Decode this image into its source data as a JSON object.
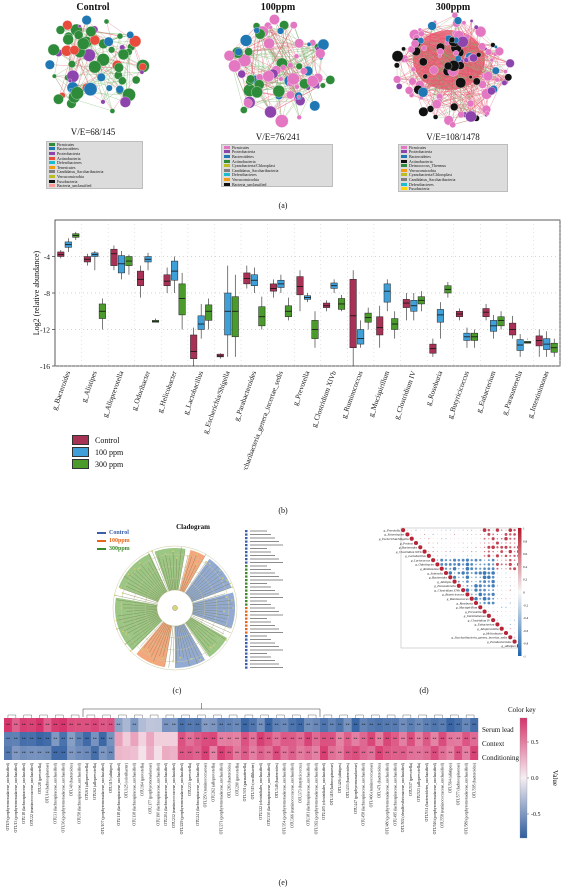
{
  "panel_a": {
    "label": "(a)",
    "networks": [
      {
        "title": "Control",
        "ve": "V/E=68/145",
        "legend": [
          {
            "name": "Firmicutes",
            "pct": "",
            "color": "#2e8b3a"
          },
          {
            "name": "Bacteroidetes",
            "pct": "",
            "color": "#1f77b4"
          },
          {
            "name": "Proteobacteria",
            "pct": "",
            "color": "#8e44ad"
          },
          {
            "name": "Actinobacteria",
            "pct": "",
            "color": "#e74c3c"
          },
          {
            "name": "Deferribacteres",
            "pct": "",
            "color": "#17becf"
          },
          {
            "name": "Tenericutes",
            "pct": "",
            "color": "#f39c12"
          },
          {
            "name": "Candidatus_Saccharibacteria",
            "pct": "",
            "color": "#7f7f7f"
          },
          {
            "name": "Verrucomicrobia",
            "pct": "",
            "color": "#bcbd22"
          },
          {
            "name": "Fusobacteria",
            "pct": "",
            "color": "#111111"
          },
          {
            "name": "Bacteria_unclassified",
            "pct": "",
            "color": "#ff9896"
          }
        ]
      },
      {
        "title": "100ppm",
        "ve": "V/E=76/241",
        "legend": [
          {
            "name": "Firmicutes",
            "pct": "",
            "color": "#e377c2"
          },
          {
            "name": "Proteobacteria",
            "pct": "",
            "color": "#8e44ad"
          },
          {
            "name": "Bacteroidetes",
            "pct": "",
            "color": "#1f77b4"
          },
          {
            "name": "Actinobacteria",
            "pct": "",
            "color": "#2e8b3a"
          },
          {
            "name": "Cyanobacteria/Chloroplast",
            "pct": "",
            "color": "#bcbd22"
          },
          {
            "name": "Candidatus_Saccharibacteria",
            "pct": "",
            "color": "#7f7f7f"
          },
          {
            "name": "Deferribacteres",
            "pct": "",
            "color": "#17becf"
          },
          {
            "name": "Verrucomicrobia",
            "pct": "",
            "color": "#f39c12"
          },
          {
            "name": "Bacteria_unclassified",
            "pct": "",
            "color": "#111111"
          }
        ]
      },
      {
        "title": "300ppm",
        "ve": "V/E=108/1478",
        "legend": [
          {
            "name": "Firmicutes",
            "pct": "",
            "color": "#e377c2"
          },
          {
            "name": "Proteobacteria",
            "pct": "",
            "color": "#8e44ad"
          },
          {
            "name": "Bacteroidetes",
            "pct": "",
            "color": "#1f77b4"
          },
          {
            "name": "Actinobacteria",
            "pct": "",
            "color": "#111111"
          },
          {
            "name": "Deinococcus_Thermus",
            "pct": "",
            "color": "#2e8b3a"
          },
          {
            "name": "Verrucomicrobia",
            "pct": "",
            "color": "#f39c12"
          },
          {
            "name": "Cyanobacteria/Chloroplast",
            "pct": "",
            "color": "#bcbd22"
          },
          {
            "name": "Candidatus_Saccharibacteria",
            "pct": "",
            "color": "#7f7f7f"
          },
          {
            "name": "Deferribacteres",
            "pct": "",
            "color": "#17becf"
          },
          {
            "name": "Fusobacteria",
            "pct": "",
            "color": "#ffd700"
          }
        ]
      }
    ]
  },
  "panel_b": {
    "label": "(b)",
    "legend": [
      {
        "name": "Control",
        "color": "#a83256"
      },
      {
        "name": "100 ppm",
        "color": "#3f9fd8"
      },
      {
        "name": "300 ppm",
        "color": "#4a9a2c"
      }
    ]
  },
  "chart_data": {
    "type": "boxplot",
    "ylabel": "Log2 (relative abundance)",
    "ylim": [
      -16,
      0
    ],
    "yticks": [
      "-4",
      "-8",
      "-12",
      "-16"
    ],
    "grid": true,
    "categories": [
      "g_Bacteroides",
      "g_Alistipes",
      "g_Alloprevotella",
      "g_Odoribacter",
      "g_Helicobacter",
      "g_Lactobacillus",
      "g_Escherichia/Shigella",
      "g_Parabacteroides",
      "g_Saccharibacteria_genera_incertae_sedis",
      "g_Prevotella",
      "g_Clostridium XlVb",
      "g_Ruminococcus",
      "g_Mucispirillum",
      "g_Clostridium IV",
      "g_Roseburia",
      "g_Butyricicoccus",
      "g_Eubacterium",
      "g_Parasutterella",
      "g_Intestinimonas"
    ],
    "series": [
      {
        "name": "Control",
        "boxes": [
          [
            -4.2,
            -4.0,
            -3.8,
            -3.5,
            -3.3
          ],
          [
            -5.0,
            -4.6,
            -4.3,
            -4.0,
            -3.7
          ],
          [
            -5.5,
            -5.0,
            -3.7,
            -3.2,
            -2.8
          ],
          [
            -8.5,
            -7.2,
            -6.5,
            -5.6,
            -5.0
          ],
          [
            -8.0,
            -7.2,
            -6.7,
            -6.0,
            -5.2
          ],
          [
            -16,
            -15.2,
            -14.4,
            -12.6,
            -11.8
          ],
          [
            -15.2,
            -15.0,
            -14.9,
            -14.7,
            -14.6
          ],
          [
            -7.5,
            -7.0,
            -6.4,
            -5.8,
            -5.0
          ],
          [
            -8.5,
            -7.8,
            -7.5,
            -7.0,
            -6.5
          ],
          [
            -10,
            -8.2,
            -7.3,
            -6.2,
            -5.5
          ],
          [
            -10,
            -9.6,
            -9.4,
            -9.1,
            -8.8
          ],
          [
            -16,
            -14.0,
            -10.5,
            -6.5,
            -5.5
          ],
          [
            -14,
            -12.6,
            -11.8,
            -10.6,
            -9.4
          ],
          [
            -11,
            -9.6,
            -9.1,
            -8.7,
            -8.0
          ],
          [
            -15,
            -14.6,
            -14.1,
            -13.6,
            -13.0
          ],
          [
            -11,
            -10.6,
            -10.3,
            -10.0,
            -9.7
          ],
          [
            -11,
            -10.6,
            -10.1,
            -9.7,
            -9.2
          ],
          [
            -13,
            -12.6,
            -12.0,
            -11.3,
            -10.5
          ],
          [
            -15,
            -13.8,
            -13.2,
            -12.7,
            -12.0
          ]
        ]
      },
      {
        "name": "100 ppm",
        "boxes": [
          [
            -3.5,
            -3.0,
            -2.7,
            -2.4,
            -2.0
          ],
          [
            -5.5,
            -4.0,
            -3.8,
            -3.6,
            -3.4
          ],
          [
            -6.5,
            -5.8,
            -4.8,
            -3.9,
            -3.4
          ],
          [
            -5.5,
            -4.6,
            -4.3,
            -4.0,
            -3.6
          ],
          [
            -8.0,
            -6.6,
            -5.6,
            -4.5,
            -4.0
          ],
          [
            -13,
            -12.0,
            -11.4,
            -10.5,
            -9.2
          ],
          [
            -15,
            -12.6,
            -10.0,
            -8.0,
            -5.0
          ],
          [
            -8.0,
            -7.2,
            -6.6,
            -6.0,
            -5.2
          ],
          [
            -8.0,
            -7.4,
            -7.0,
            -6.6,
            -6.0
          ],
          [
            -9.0,
            -8.7,
            -8.5,
            -8.3,
            -8.0
          ],
          [
            -8.0,
            -7.5,
            -7.2,
            -6.9,
            -6.5
          ],
          [
            -14,
            -13.6,
            -13.0,
            -12.0,
            -11.0
          ],
          [
            -10,
            -9.0,
            -7.8,
            -7.0,
            -6.5
          ],
          [
            -11,
            -10.0,
            -9.4,
            -8.8,
            -8.0
          ],
          [
            -13,
            -11.2,
            -10.4,
            -9.8,
            -9.0
          ],
          [
            -14,
            -13.2,
            -12.8,
            -12.4,
            -11.8
          ],
          [
            -13,
            -12.2,
            -11.6,
            -11.0,
            -10.4
          ],
          [
            -15,
            -14.3,
            -13.7,
            -13.1,
            -12.5
          ],
          [
            -15,
            -14.2,
            -13.6,
            -13.0,
            -12.2
          ]
        ]
      },
      {
        "name": "300 ppm",
        "boxes": [
          [
            -2.2,
            -1.9,
            -1.7,
            -1.5,
            -1.3
          ],
          [
            -12,
            -10.8,
            -10.0,
            -9.2,
            -8.6
          ],
          [
            -6.0,
            -5.0,
            -4.5,
            -4.0,
            -3.8
          ],
          [
            -11,
            -11.2,
            -11.1,
            -11.0,
            -10.8
          ],
          [
            -12,
            -10.4,
            -8.6,
            -7.0,
            -5.8
          ],
          [
            -12,
            -11.0,
            -10.0,
            -9.3,
            -8.6
          ],
          [
            -15,
            -12.8,
            -10.0,
            -8.4,
            -6.0
          ],
          [
            -12,
            -11.6,
            -10.6,
            -9.5,
            -8.4
          ],
          [
            -11,
            -10.6,
            -10.0,
            -9.4,
            -8.5
          ],
          [
            -14,
            -13.0,
            -12.0,
            -11.0,
            -10.0
          ],
          [
            -10,
            -9.8,
            -9.2,
            -8.6,
            -8.2
          ],
          [
            -12,
            -11.2,
            -10.7,
            -10.2,
            -9.6
          ],
          [
            -13,
            -12.0,
            -11.4,
            -10.8,
            -10.0
          ],
          [
            -10,
            -9.2,
            -8.8,
            -8.4,
            -7.8
          ],
          [
            -8.5,
            -8.0,
            -7.6,
            -7.2,
            -6.8
          ],
          [
            -14,
            -13.2,
            -12.8,
            -12.4,
            -12.0
          ],
          [
            -12,
            -11.6,
            -11.0,
            -10.6,
            -10.0
          ],
          [
            -13,
            -13.5,
            -13.4,
            -13.3,
            -13.1
          ],
          [
            -15,
            -14.5,
            -14.0,
            -13.5,
            -13.0
          ]
        ]
      }
    ]
  },
  "panel_c": {
    "label": "(c)",
    "title": "Cladogram",
    "legend": [
      {
        "name": "Control",
        "color": "#3a5fa8"
      },
      {
        "name": "100ppm",
        "color": "#e8661c"
      },
      {
        "name": "300ppm",
        "color": "#3d8a2a"
      }
    ],
    "colors": {
      "control": "#6f8fc4",
      "ppm100": "#f08a50",
      "ppm300": "#79b35a"
    }
  },
  "panel_d": {
    "label": "(d)",
    "taxa": [
      "g_Prevotella",
      "g_Enterobacter",
      "g_Escherichia/Shigella",
      "g_Proteus",
      "g_Bacteroides",
      "g_Clostridium XlVb",
      "g_Lactobacillus",
      "g_Lactococcus",
      "g_Odoribacter",
      "g_Romboutsia",
      "g_Sutterella",
      "g_Bacteroides",
      "g_Alistipes",
      "g_Parasutterella",
      "g_Clostridium XlVb",
      "g_Butyricicoccus",
      "g_Ruminococcus",
      "g_Roseburia",
      "g_Mucispirillum",
      "g_Prevotella",
      "g_Intestinimonas",
      "g_Clostridium IV",
      "g_Eubacterium",
      "g_Alloprevotella",
      "g_Helicobacter",
      "g_Saccharibacteria_genera_incertae_sedis",
      "g_Parabacteroides",
      "g_Alistipes"
    ],
    "scale": [
      "1",
      "0.8",
      "0.6",
      "0.4",
      "0.2",
      "0",
      "-0.2",
      "-0.4",
      "-0.6",
      "-0.8",
      "-1"
    ],
    "colors": {
      "pos": "#b2182b",
      "neg": "#2166ac"
    }
  },
  "panel_e": {
    "label": "(e)",
    "rows": [
      "Serum lead",
      "Context",
      "Conditioning"
    ],
    "color_key_title": "Color key",
    "value_label": "Value",
    "key_ticks": [
      "0.5",
      "0.0",
      "-0.5"
    ],
    "colors": {
      "pos": "#d6336b",
      "mid": "#f6eef2",
      "neg": "#2d5da0"
    },
    "otus": [
      "OTU9 (porphyromonadaceae_unclassified)",
      "OTU13 (porphyromonadaceae_unclassified)",
      "OTU18 (lachnospiraceae_unclassified)",
      "OTU22 (ruminococcaceae_unclassified)",
      "OTU28 (prevotella)",
      "OTU14 (lachnospiraceae)",
      "OTU31 (lachnospiraceae_unclassified)",
      "OTU36 (porphyromonadaceae_unclassified)",
      "OTU40 (bacteroides)",
      "OTU58 (lachnospiraceae_unclassified)",
      "OTU61 (alloprevotella)",
      "OTU62 (alloprevotella)",
      "OTU107 (porphyromonadaceae_unclassified)",
      "OTU115 (alistipes)",
      "OTU118 (lachnospiraceae_unclassified)",
      "OTU125 (odoribacter)",
      "OTU138 (lachnospiraceae_unclassified)",
      "OTU164 (prevotella)",
      "OTU177 (porphyromonadaceae)",
      "OTU190 (lachnospiraceae_unclassified)",
      "OTU204 (lachnospiraceae_unclassified)",
      "OTU212 (ruminococcaceae_unclassified)",
      "OTU229 (porphyromonadaceae_unclassified)",
      "OTU233 (prevotella)",
      "OTU241 (lachnospiraceae_unclassified)",
      "OTU250 (ruminococcaceae)",
      "OTU262 (alloprevotella)",
      "OTU271 (porphyromonadaceae_unclassified)",
      "OTU283 (bacteroides)",
      "OTU290 (prevotella)",
      "OTU301 (parasutterella)",
      "OTU315 (oscillibacter)",
      "OTU322 (clostridiales_unclassified)",
      "OTU330 (lachnospiraceae_unclassified)",
      "OTU348 (bacteroides)",
      "OTU354 (porphyromonadaceae_unclassified)",
      "OTU366 (ruminococcaceae_unclassified)",
      "OTU373 (butyricicoccus)",
      "OTU381 (lachnospiraceae_unclassified)",
      "OTU392 (porphyromonadaceae_unclassified)",
      "OTU405 (clostridiales_unclassified)",
      "OTU418 (lachnospiraceae)",
      "OTU426 (alistipes)",
      "OTU433 (bacteroides)",
      "OTU447 (porphyromonadaceae)",
      "OTU458 (lachnospiraceae_unclassified)",
      "OTU466 (ruminococcaceae)",
      "OTU471 (bacteroides)",
      "OTU480 (porphyromonadaceae_unclassified)",
      "OTU495 (lachnospiraceae_unclassified)",
      "OTU502 (desulfovibrionaceae_unclassified)",
      "OTU517 (prevotella)",
      "OTU523 (alloprevotella)",
      "OTU531 (bacteroidetes_unclassified)",
      "OTU546 (porphyromonadaceae_unclassified)",
      "OTU558 (ruminococcaceae_unclassified)",
      "OTU564 (alistipes)",
      "OTU577 (lachnospiraceae)",
      "OTU589 (porphyromonadaceae_unclassified)",
      "OTU595 (bacteroides)"
    ]
  }
}
